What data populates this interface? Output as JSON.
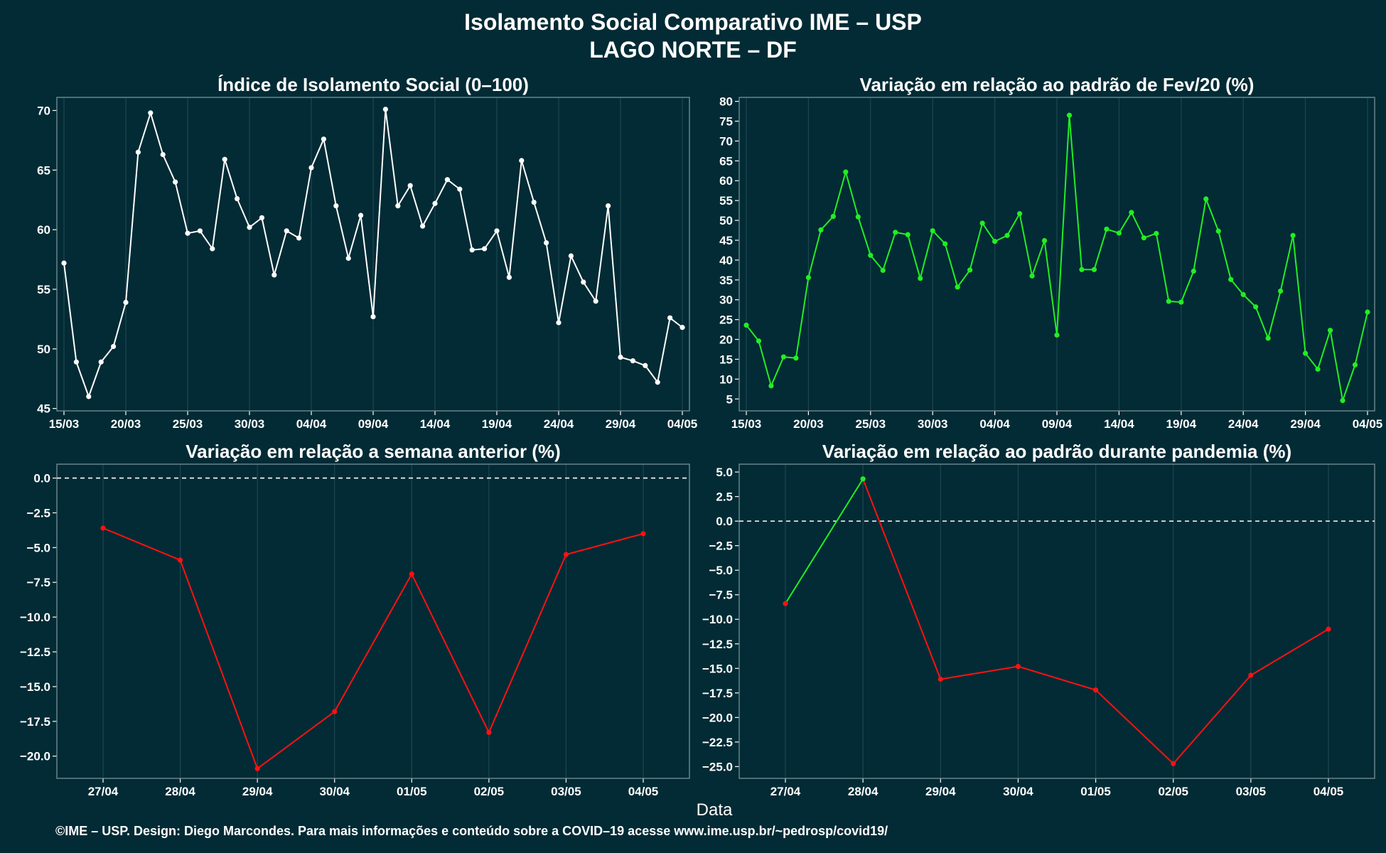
{
  "page": {
    "title_line1": "Isolamento Social Comparativo IME – USP",
    "title_line2": "LAGO NORTE – DF",
    "xlabel": "Data",
    "footer": "©IME – USP. Design: Diego Marcondes. Para mais informações e conteúdo sobre a COVID–19 acesse www.ime.usp.br/~pedrosp/covid19/",
    "background": "#022b35",
    "panel_border": "#6f8a92"
  },
  "chart_data": [
    {
      "id": "isolamento",
      "type": "line",
      "title": "Índice de Isolamento Social (0–100)",
      "x_start": "15/03",
      "x_end": "04/05",
      "x_ticks": [
        "15/03",
        "20/03",
        "25/03",
        "30/03",
        "04/04",
        "09/04",
        "14/04",
        "19/04",
        "24/04",
        "29/04",
        "04/05"
      ],
      "y_ticks": [
        45,
        50,
        55,
        60,
        65,
        70
      ],
      "ylim": [
        44.8,
        71.1
      ],
      "color": "#ffffff",
      "values": [
        57.2,
        48.9,
        46.0,
        48.9,
        50.2,
        53.9,
        66.5,
        69.8,
        66.3,
        64.0,
        59.7,
        59.9,
        58.4,
        65.9,
        62.6,
        60.2,
        61.0,
        56.2,
        59.9,
        59.3,
        65.2,
        67.6,
        62.0,
        57.6,
        61.2,
        52.7,
        70.1,
        62.0,
        63.7,
        60.3,
        62.2,
        64.2,
        63.4,
        58.3,
        58.4,
        59.9,
        56.0,
        65.8,
        62.3,
        58.9,
        52.2,
        57.8,
        55.6,
        54.0,
        62.0,
        49.3,
        49.0,
        48.6,
        47.2,
        52.6,
        51.8
      ]
    },
    {
      "id": "fev20",
      "type": "line",
      "title": "Variação em relação ao padrão de Fev/20 (%)",
      "x_start": "15/03",
      "x_end": "04/05",
      "x_ticks": [
        "15/03",
        "20/03",
        "25/03",
        "30/03",
        "04/04",
        "09/04",
        "14/04",
        "19/04",
        "24/04",
        "29/04",
        "04/05"
      ],
      "y_ticks": [
        5,
        10,
        15,
        20,
        25,
        30,
        35,
        40,
        45,
        50,
        55,
        60,
        65,
        70,
        75,
        80
      ],
      "ylim": [
        2,
        81
      ],
      "color": "#22ee22",
      "values": [
        23.6,
        19.6,
        8.3,
        15.6,
        15.3,
        35.6,
        47.6,
        51.0,
        62.2,
        50.9,
        41.2,
        37.4,
        47.0,
        46.4,
        35.4,
        47.4,
        44.1,
        33.2,
        37.5,
        49.3,
        44.7,
        46.2,
        51.7,
        36.0,
        44.9,
        21.1,
        76.5,
        37.6,
        37.6,
        47.8,
        46.8,
        52.0,
        45.6,
        46.7,
        29.6,
        29.4,
        37.2,
        55.4,
        47.3,
        35.1,
        31.3,
        28.2,
        20.3,
        32.2,
        46.2,
        16.5,
        12.5,
        22.3,
        4.6,
        13.6,
        26.9
      ]
    },
    {
      "id": "semana",
      "type": "line",
      "title": "Variação em relação a semana anterior (%)",
      "categories": [
        "27/04",
        "28/04",
        "29/04",
        "30/04",
        "01/05",
        "02/05",
        "03/05",
        "04/05"
      ],
      "values": [
        -3.6,
        -5.9,
        -20.9,
        -16.8,
        -6.9,
        -18.3,
        -5.5,
        -4.0
      ],
      "y_ticks": [
        0.0,
        -2.5,
        -5.0,
        -7.5,
        -10.0,
        -12.5,
        -15.0,
        -17.5,
        -20.0
      ],
      "y_tick_labels": [
        "0.0",
        "−2.5",
        "−5.0",
        "−7.5",
        "−10.0",
        "−12.5",
        "−15.0",
        "−17.5",
        "−20.0"
      ],
      "ylim": [
        -21.6,
        1.0
      ],
      "reference_line": 0,
      "positive_color": "#22ee22",
      "negative_color": "#ff1111"
    },
    {
      "id": "pandemia",
      "type": "line",
      "title": "Variação em relação ao padrão durante pandemia (%)",
      "categories": [
        "27/04",
        "28/04",
        "29/04",
        "30/04",
        "01/05",
        "02/05",
        "03/05",
        "04/05"
      ],
      "values": [
        -8.4,
        4.3,
        -16.1,
        -14.8,
        -17.2,
        -24.7,
        -15.7,
        -11.0
      ],
      "y_ticks": [
        5.0,
        2.5,
        0.0,
        -2.5,
        -5.0,
        -7.5,
        -10.0,
        -12.5,
        -15.0,
        -17.5,
        -20.0,
        -22.5,
        -25.0
      ],
      "y_tick_labels": [
        "5.0",
        "2.5",
        "0.0",
        "−2.5",
        "−5.0",
        "−7.5",
        "−10.0",
        "−12.5",
        "−15.0",
        "−17.5",
        "−20.0",
        "−22.5",
        "−25.0"
      ],
      "ylim": [
        -26.2,
        5.8
      ],
      "reference_line": 0,
      "positive_color": "#22ee22",
      "negative_color": "#ff1111"
    }
  ]
}
